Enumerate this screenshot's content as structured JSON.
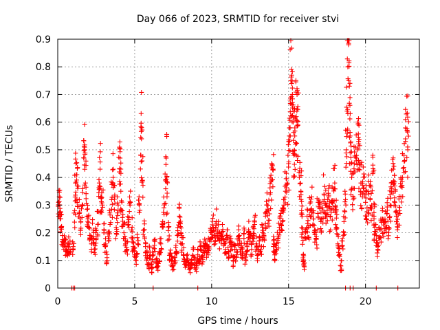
{
  "chart_data": {
    "type": "scatter",
    "title": "Day 066 of 2023, SRMTID for receiver stvi",
    "xlabel": "GPS time / hours",
    "ylabel": "SRMTID / TECUs",
    "xlim": [
      0,
      23.5
    ],
    "ylim": [
      0,
      0.9
    ],
    "grid": true,
    "marker": "+",
    "series_color": "#ff0000",
    "x_ticks": [
      0,
      5,
      10,
      15,
      20
    ],
    "x_tick_labels": [
      "0",
      "5",
      "10",
      "15",
      "20"
    ],
    "y_ticks": [
      0,
      0.1,
      0.2,
      0.3,
      0.4,
      0.5,
      0.6,
      0.7,
      0.8,
      0.9
    ],
    "y_tick_labels": [
      "0",
      "0.1",
      "0.2",
      "0.3",
      "0.4",
      "0.5",
      "0.6",
      "0.7",
      "0.8",
      "0.9"
    ],
    "series": [
      {
        "name": "SRMTID",
        "points": [
          [
            0.05,
            0.31
          ],
          [
            0.1,
            0.33
          ],
          [
            0.15,
            0.25
          ],
          [
            0.2,
            0.22
          ],
          [
            0.3,
            0.19
          ],
          [
            0.4,
            0.17
          ],
          [
            0.5,
            0.15
          ],
          [
            0.6,
            0.13
          ],
          [
            0.7,
            0.16
          ],
          [
            0.8,
            0.14
          ],
          [
            1.0,
            0.15
          ],
          [
            1.1,
            0.28
          ],
          [
            1.15,
            0.38
          ],
          [
            1.2,
            0.41
          ],
          [
            1.3,
            0.36
          ],
          [
            1.4,
            0.27
          ],
          [
            1.5,
            0.24
          ],
          [
            1.6,
            0.3
          ],
          [
            1.7,
            0.47
          ],
          [
            1.75,
            0.5
          ],
          [
            1.8,
            0.38
          ],
          [
            1.9,
            0.26
          ],
          [
            2.0,
            0.22
          ],
          [
            2.1,
            0.19
          ],
          [
            2.2,
            0.16
          ],
          [
            2.3,
            0.21
          ],
          [
            2.4,
            0.14
          ],
          [
            2.5,
            0.18
          ],
          [
            2.6,
            0.23
          ],
          [
            2.7,
            0.38
          ],
          [
            2.75,
            0.43
          ],
          [
            2.8,
            0.33
          ],
          [
            2.9,
            0.3
          ],
          [
            3.0,
            0.2
          ],
          [
            3.1,
            0.15
          ],
          [
            3.2,
            0.11
          ],
          [
            3.3,
            0.17
          ],
          [
            3.4,
            0.23
          ],
          [
            3.5,
            0.32
          ],
          [
            3.6,
            0.4
          ],
          [
            3.7,
            0.33
          ],
          [
            3.8,
            0.22
          ],
          [
            3.9,
            0.28
          ],
          [
            4.0,
            0.42
          ],
          [
            4.05,
            0.47
          ],
          [
            4.1,
            0.35
          ],
          [
            4.2,
            0.28
          ],
          [
            4.3,
            0.2
          ],
          [
            4.4,
            0.16
          ],
          [
            4.5,
            0.14
          ],
          [
            4.6,
            0.23
          ],
          [
            4.7,
            0.3
          ],
          [
            4.8,
            0.21
          ],
          [
            4.9,
            0.15
          ],
          [
            5.0,
            0.12
          ],
          [
            5.1,
            0.1
          ],
          [
            5.2,
            0.16
          ],
          [
            5.3,
            0.3
          ],
          [
            5.4,
            0.48
          ],
          [
            5.45,
            0.58
          ],
          [
            5.5,
            0.39
          ],
          [
            5.6,
            0.21
          ],
          [
            5.7,
            0.15
          ],
          [
            5.8,
            0.11
          ],
          [
            5.9,
            0.09
          ],
          [
            6.0,
            0.13
          ],
          [
            6.1,
            0.07
          ],
          [
            6.2,
            0.12
          ],
          [
            6.3,
            0.17
          ],
          [
            6.4,
            0.09
          ],
          [
            6.5,
            0.08
          ],
          [
            6.6,
            0.12
          ],
          [
            6.7,
            0.16
          ],
          [
            6.8,
            0.22
          ],
          [
            6.9,
            0.29
          ],
          [
            7.0,
            0.39
          ],
          [
            7.05,
            0.47
          ],
          [
            7.1,
            0.33
          ],
          [
            7.2,
            0.22
          ],
          [
            7.3,
            0.12
          ],
          [
            7.4,
            0.1
          ],
          [
            7.5,
            0.08
          ],
          [
            7.6,
            0.11
          ],
          [
            7.7,
            0.13
          ],
          [
            7.8,
            0.19
          ],
          [
            7.9,
            0.26
          ],
          [
            8.0,
            0.2
          ],
          [
            8.1,
            0.16
          ],
          [
            8.2,
            0.12
          ],
          [
            8.3,
            0.09
          ],
          [
            8.4,
            0.1
          ],
          [
            8.5,
            0.08
          ],
          [
            8.6,
            0.07
          ],
          [
            8.7,
            0.1
          ],
          [
            8.8,
            0.14
          ],
          [
            8.9,
            0.09
          ],
          [
            9.0,
            0.08
          ],
          [
            9.1,
            0.12
          ],
          [
            9.2,
            0.1
          ],
          [
            9.3,
            0.14
          ],
          [
            9.4,
            0.11
          ],
          [
            9.5,
            0.15
          ],
          [
            9.6,
            0.17
          ],
          [
            9.7,
            0.13
          ],
          [
            9.8,
            0.15
          ],
          [
            9.9,
            0.18
          ],
          [
            10.0,
            0.2
          ],
          [
            10.1,
            0.22
          ],
          [
            10.2,
            0.19
          ],
          [
            10.3,
            0.24
          ],
          [
            10.4,
            0.21
          ],
          [
            10.5,
            0.17
          ],
          [
            10.6,
            0.19
          ],
          [
            10.7,
            0.23
          ],
          [
            10.8,
            0.16
          ],
          [
            10.9,
            0.14
          ],
          [
            11.0,
            0.19
          ],
          [
            11.1,
            0.13
          ],
          [
            11.2,
            0.17
          ],
          [
            11.3,
            0.15
          ],
          [
            11.4,
            0.1
          ],
          [
            11.5,
            0.14
          ],
          [
            11.6,
            0.12
          ],
          [
            11.7,
            0.16
          ],
          [
            11.8,
            0.19
          ],
          [
            11.9,
            0.14
          ],
          [
            12.0,
            0.13
          ],
          [
            12.1,
            0.18
          ],
          [
            12.2,
            0.11
          ],
          [
            12.3,
            0.15
          ],
          [
            12.4,
            0.2
          ],
          [
            12.5,
            0.17
          ],
          [
            12.6,
            0.14
          ],
          [
            12.7,
            0.19
          ],
          [
            12.8,
            0.23
          ],
          [
            12.9,
            0.16
          ],
          [
            13.0,
            0.12
          ],
          [
            13.1,
            0.17
          ],
          [
            13.2,
            0.14
          ],
          [
            13.3,
            0.22
          ],
          [
            13.4,
            0.19
          ],
          [
            13.5,
            0.26
          ],
          [
            13.6,
            0.3
          ],
          [
            13.7,
            0.28
          ],
          [
            13.8,
            0.34
          ],
          [
            13.9,
            0.39
          ],
          [
            14.0,
            0.43
          ],
          [
            14.05,
            0.16
          ],
          [
            14.1,
            0.12
          ],
          [
            14.2,
            0.14
          ],
          [
            14.3,
            0.18
          ],
          [
            14.4,
            0.22
          ],
          [
            14.5,
            0.27
          ],
          [
            14.6,
            0.24
          ],
          [
            14.7,
            0.3
          ],
          [
            14.8,
            0.35
          ],
          [
            14.9,
            0.38
          ],
          [
            15.0,
            0.45
          ],
          [
            15.05,
            0.55
          ],
          [
            15.1,
            0.68
          ],
          [
            15.15,
            0.75
          ],
          [
            15.2,
            0.77
          ],
          [
            15.25,
            0.7
          ],
          [
            15.3,
            0.6
          ],
          [
            15.35,
            0.48
          ],
          [
            15.4,
            0.55
          ],
          [
            15.45,
            0.52
          ],
          [
            15.5,
            0.62
          ],
          [
            15.55,
            0.7
          ],
          [
            15.6,
            0.59
          ],
          [
            15.7,
            0.4
          ],
          [
            15.8,
            0.35
          ],
          [
            15.85,
            0.28
          ],
          [
            15.9,
            0.2
          ],
          [
            15.95,
            0.12
          ],
          [
            16.0,
            0.08
          ],
          [
            16.1,
            0.18
          ],
          [
            16.2,
            0.26
          ],
          [
            16.3,
            0.22
          ],
          [
            16.4,
            0.28
          ],
          [
            16.5,
            0.33
          ],
          [
            16.6,
            0.25
          ],
          [
            16.7,
            0.2
          ],
          [
            16.8,
            0.18
          ],
          [
            16.9,
            0.27
          ],
          [
            17.0,
            0.31
          ],
          [
            17.1,
            0.24
          ],
          [
            17.2,
            0.29
          ],
          [
            17.3,
            0.34
          ],
          [
            17.4,
            0.3
          ],
          [
            17.5,
            0.28
          ],
          [
            17.6,
            0.33
          ],
          [
            17.7,
            0.26
          ],
          [
            17.8,
            0.31
          ],
          [
            17.9,
            0.36
          ],
          [
            18.0,
            0.38
          ],
          [
            18.05,
            0.29
          ],
          [
            18.1,
            0.22
          ],
          [
            18.2,
            0.16
          ],
          [
            18.3,
            0.12
          ],
          [
            18.4,
            0.08
          ],
          [
            18.5,
            0.17
          ],
          [
            18.6,
            0.24
          ],
          [
            18.7,
            0.32
          ],
          [
            18.75,
            0.5
          ],
          [
            18.8,
            0.64
          ],
          [
            18.85,
            0.8
          ],
          [
            18.9,
            0.88
          ],
          [
            18.95,
            0.73
          ],
          [
            19.0,
            0.55
          ],
          [
            19.05,
            0.45
          ],
          [
            19.1,
            0.4
          ],
          [
            19.2,
            0.36
          ],
          [
            19.3,
            0.42
          ],
          [
            19.4,
            0.46
          ],
          [
            19.5,
            0.5
          ],
          [
            19.55,
            0.53
          ],
          [
            19.6,
            0.45
          ],
          [
            19.7,
            0.38
          ],
          [
            19.8,
            0.33
          ],
          [
            19.9,
            0.36
          ],
          [
            20.0,
            0.31
          ],
          [
            20.1,
            0.29
          ],
          [
            20.2,
            0.34
          ],
          [
            20.3,
            0.32
          ],
          [
            20.4,
            0.3
          ],
          [
            20.5,
            0.42
          ],
          [
            20.55,
            0.26
          ],
          [
            20.6,
            0.22
          ],
          [
            20.7,
            0.19
          ],
          [
            20.8,
            0.14
          ],
          [
            20.9,
            0.18
          ],
          [
            21.0,
            0.21
          ],
          [
            21.1,
            0.25
          ],
          [
            21.2,
            0.2
          ],
          [
            21.3,
            0.24
          ],
          [
            21.4,
            0.27
          ],
          [
            21.5,
            0.22
          ],
          [
            21.6,
            0.3
          ],
          [
            21.7,
            0.36
          ],
          [
            21.8,
            0.43
          ],
          [
            21.85,
            0.38
          ],
          [
            21.9,
            0.31
          ],
          [
            22.0,
            0.26
          ],
          [
            22.1,
            0.22
          ],
          [
            22.2,
            0.28
          ],
          [
            22.3,
            0.33
          ],
          [
            22.4,
            0.4
          ],
          [
            22.5,
            0.48
          ],
          [
            22.6,
            0.53
          ],
          [
            22.7,
            0.57
          ],
          [
            22.75,
            0.5
          ]
        ],
        "zero_points": [
          0.9,
          1.0,
          1.1,
          6.2,
          9.1,
          18.7,
          19.0,
          19.2,
          20.7,
          22.1
        ]
      }
    ]
  }
}
